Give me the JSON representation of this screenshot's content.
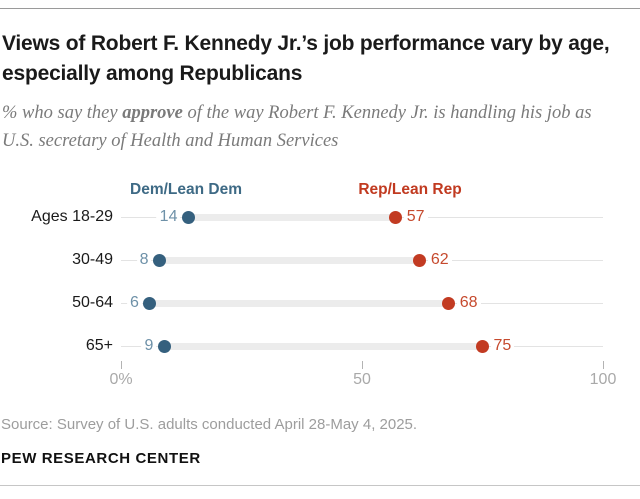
{
  "header": {
    "title": "Views of Robert F. Kennedy Jr.’s job performance vary by age, especially among Republicans",
    "subtitle": {
      "prefix": "% who say they ",
      "emphasis": "approve",
      "suffix": " of the way Robert F. Kennedy Jr. is handling his job as U.S. secretary of Health and Human Services"
    }
  },
  "chart_data": {
    "type": "scatter",
    "variant": "dumbbell-dot-plot",
    "title": "Views of Robert F. Kennedy Jr.’s job performance vary by age, especially among Republicans",
    "categories": [
      "Ages 18-29",
      "30-49",
      "50-64",
      "65+"
    ],
    "series": [
      {
        "name": "Dem/Lean Dem",
        "values": [
          14,
          8,
          6,
          9
        ],
        "dot_color": "#35607E",
        "value_label_color": "#6E91A8",
        "legend_color": "#3E6A85"
      },
      {
        "name": "Rep/Lean Rep",
        "values": [
          57,
          62,
          68,
          75
        ],
        "dot_color": "#C23B22",
        "value_label_color": "#C64A2E",
        "legend_color": "#C13A20"
      }
    ],
    "xlim": [
      0,
      100
    ],
    "x_ticks": [
      {
        "value": 0,
        "label": "0%"
      },
      {
        "value": 50,
        "label": "50"
      },
      {
        "value": 100,
        "label": "100"
      }
    ],
    "grid": "off",
    "legend_position": "top",
    "connector_color": "#ECECEC",
    "baseline_color": "#E3E3E3"
  },
  "footer": {
    "source": "Source: Survey of U.S. adults conducted April 28-May 4, 2025.",
    "brand": "PEW RESEARCH CENTER"
  }
}
